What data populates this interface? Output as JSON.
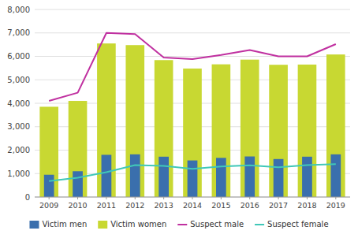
{
  "chart_data": {
    "type": "bar",
    "categories": [
      "2009",
      "2010",
      "2011",
      "2012",
      "2013",
      "2014",
      "2015",
      "2016",
      "2017",
      "2018",
      "2019"
    ],
    "series": [
      {
        "name": "Victim men",
        "type": "bar",
        "color": "#3a6fad",
        "values": [
          950,
          1100,
          1800,
          1820,
          1720,
          1560,
          1670,
          1730,
          1620,
          1720,
          1820
        ]
      },
      {
        "name": "Victim women",
        "type": "bar",
        "color": "#c8d832",
        "values": [
          3850,
          4100,
          6550,
          6480,
          5840,
          5480,
          5660,
          5860,
          5640,
          5650,
          6080
        ]
      },
      {
        "name": "Suspect male",
        "type": "line",
        "color": "#c030a0",
        "values": [
          4100,
          4450,
          7000,
          6950,
          5950,
          5880,
          6060,
          6270,
          6000,
          6000,
          6520
        ]
      },
      {
        "name": "Suspect female",
        "type": "line",
        "color": "#40c8b8",
        "values": [
          680,
          820,
          1060,
          1360,
          1330,
          1200,
          1300,
          1350,
          1270,
          1360,
          1400
        ]
      }
    ],
    "ylim": [
      0,
      8000
    ],
    "yticks": [
      0,
      {
        "value": 1000,
        "label": "1,000"
      },
      {
        "value": 2000,
        "label": "2,000"
      },
      {
        "value": 3000,
        "label": "3,000"
      },
      {
        "value": 4000,
        "label": "4,000"
      },
      {
        "value": 5000,
        "label": "5,000"
      },
      {
        "value": 6000,
        "label": "6,000"
      },
      {
        "value": 7000,
        "label": "7,000"
      },
      {
        "value": 8000,
        "label": "8,000"
      }
    ],
    "grid": true,
    "legend": "bottom"
  }
}
